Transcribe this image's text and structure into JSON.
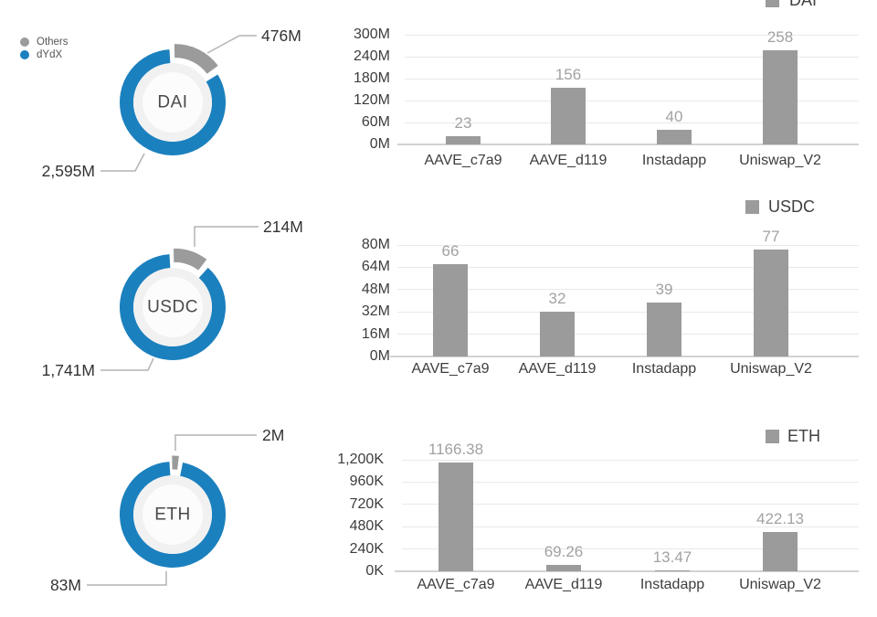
{
  "page": {
    "background": "#ffffff"
  },
  "colors": {
    "blue": "#1b80be",
    "gray": "#9b9b9b",
    "grid": "#e9e9e9",
    "axis_line": "#d2d2d2",
    "axis_text": "#3d3d3d",
    "value_text": "#a2a2a2",
    "legend_text": "#3f3f3f",
    "donut_legend_text": "#555555",
    "callout_text": "#333333",
    "callout_line": "#b3b3b3",
    "donut_title_text": "#4a4a4a",
    "donut_hole": "#f1f1f1",
    "donut_hole_center": "#fcfcfc"
  },
  "donut_legend": {
    "items": [
      {
        "label": "Others",
        "color_key": "gray"
      },
      {
        "label": "dYdX",
        "color_key": "blue"
      }
    ]
  },
  "chart_data": [
    {
      "type": "pie",
      "donut": true,
      "title": "DAI",
      "legend_position": "top-left",
      "legend": [
        "Others",
        "dYdX"
      ],
      "slices": [
        {
          "label": "dYdX",
          "value": 2595,
          "callout": "2,595M",
          "color_key": "blue"
        },
        {
          "label": "Others",
          "value": 476,
          "callout": "476M",
          "color_key": "gray"
        }
      ]
    },
    {
      "type": "bar",
      "legend": "DAI",
      "legend_position": "top-right",
      "grid": true,
      "categories": [
        "AAVE_c7a9",
        "AAVE_d119",
        "Instadapp",
        "Uniswap_V2"
      ],
      "values": [
        23,
        156,
        40,
        258
      ],
      "value_labels": [
        "23",
        "156",
        "40",
        "258"
      ],
      "ylim": [
        0,
        300
      ],
      "yticks": [
        "300M",
        "240M",
        "180M",
        "120M",
        "60M",
        "0M"
      ]
    },
    {
      "type": "pie",
      "donut": true,
      "title": "USDC",
      "slices": [
        {
          "label": "dYdX",
          "value": 1741,
          "callout": "1,741M",
          "color_key": "blue"
        },
        {
          "label": "Others",
          "value": 214,
          "callout": "214M",
          "color_key": "gray"
        }
      ]
    },
    {
      "type": "bar",
      "legend": "USDC",
      "legend_position": "top-right",
      "grid": true,
      "categories": [
        "AAVE_c7a9",
        "AAVE_d119",
        "Instadapp",
        "Uniswap_V2"
      ],
      "values": [
        66,
        32,
        39,
        77
      ],
      "value_labels": [
        "66",
        "32",
        "39",
        "77"
      ],
      "ylim": [
        0,
        80
      ],
      "yticks": [
        "80M",
        "64M",
        "48M",
        "32M",
        "16M",
        "0M"
      ]
    },
    {
      "type": "pie",
      "donut": true,
      "title": "ETH",
      "slices": [
        {
          "label": "dYdX",
          "value": 83,
          "callout": "83M",
          "color_key": "blue"
        },
        {
          "label": "Others",
          "value": 2,
          "callout": "2M",
          "color_key": "gray"
        }
      ]
    },
    {
      "type": "bar",
      "legend": "ETH",
      "legend_position": "top-right",
      "grid": true,
      "categories": [
        "AAVE_c7a9",
        "AAVE_d119",
        "Instadapp",
        "Uniswap_V2"
      ],
      "values": [
        1166.38,
        69.26,
        13.47,
        422.13
      ],
      "value_labels": [
        "1166.38",
        "69.26",
        "13.47",
        "422.13"
      ],
      "ylim": [
        0,
        1200
      ],
      "yticks": [
        "1,200K",
        "960K",
        "720K",
        "480K",
        "240K",
        "0K"
      ]
    }
  ]
}
